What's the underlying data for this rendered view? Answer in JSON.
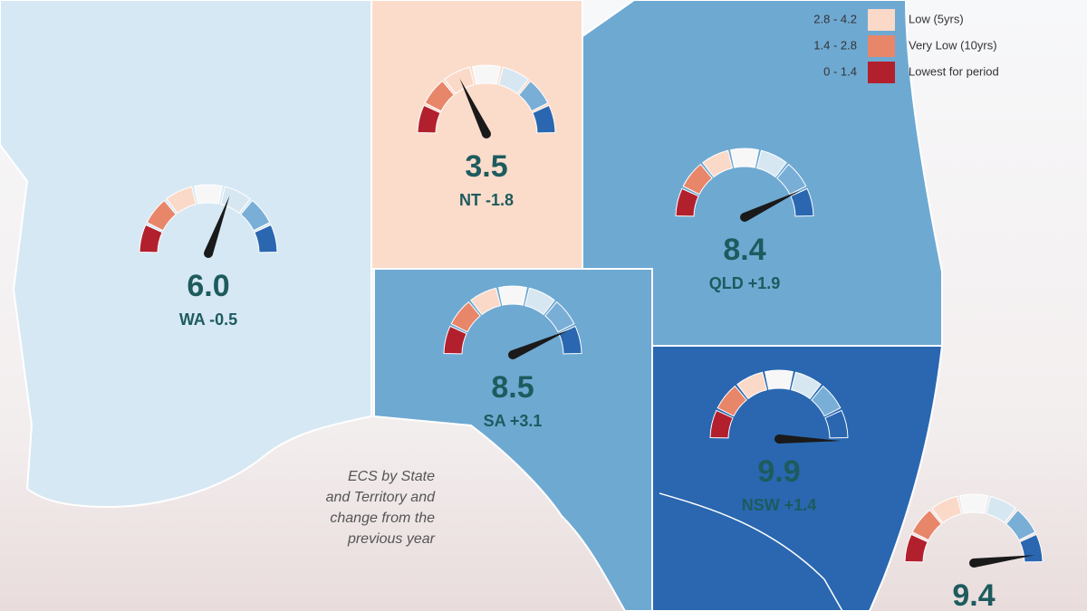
{
  "legend": [
    {
      "range": "2.8 - 4.2",
      "label": "Low (5yrs)",
      "color": "#fbd9c8"
    },
    {
      "range": "1.4 - 2.8",
      "label": "Very Low (10yrs)",
      "color": "#e8866a"
    },
    {
      "range": "0 - 1.4",
      "label": "Lowest for period",
      "color": "#b2202e"
    }
  ],
  "gauge": {
    "min": 0,
    "max": 9.8,
    "colors": [
      "#b2202e",
      "#e8866a",
      "#fbd9c8",
      "#f7f7f7",
      "#d7e7f2",
      "#79aed6",
      "#2a67b0"
    ]
  },
  "regions": [
    {
      "score": {
        "value": 6,
        "label": "6.0"
      },
      "label": "WA -0.5"
    },
    {
      "score": {
        "value": 3.5,
        "label": "3.5"
      },
      "label": "NT -1.8"
    },
    {
      "score": {
        "value": 8.4,
        "label": "8.4"
      },
      "label": "QLD +1.9"
    },
    {
      "score": {
        "value": 8.5,
        "label": "8.5"
      },
      "label": "SA +3.1"
    },
    {
      "score": {
        "value": 9.9,
        "label": "9.9"
      },
      "label": "NSW +1.4"
    },
    {
      "score": {
        "value": 9.4,
        "label": "9.4"
      }
    }
  ],
  "caption": [
    "ECS by State",
    "and Territory and",
    "change from the",
    "previous year"
  ]
}
